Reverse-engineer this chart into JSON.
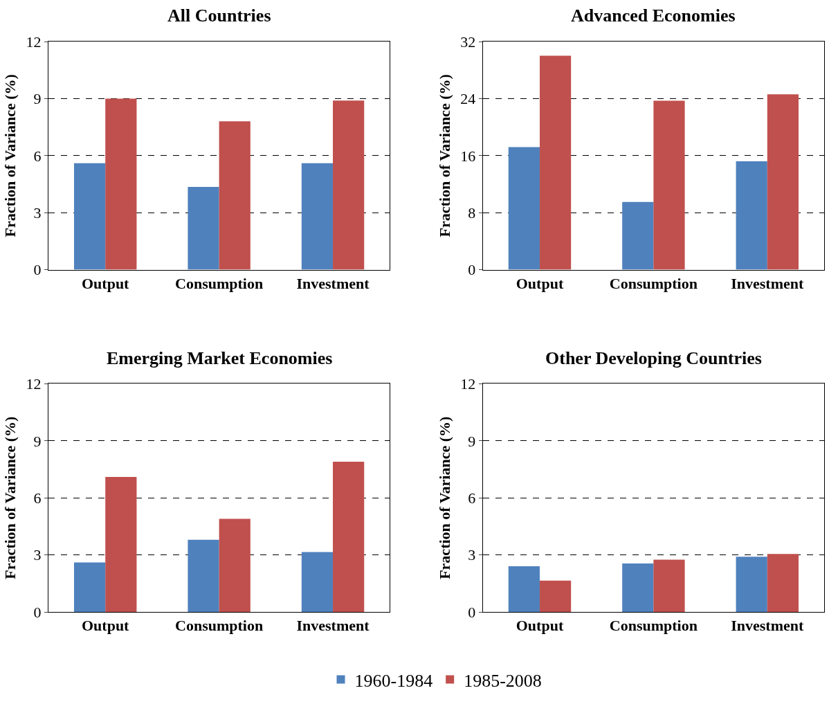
{
  "chart_data": [
    {
      "type": "bar",
      "title": "All Countries",
      "ylabel": "Fraction of Variance (%)",
      "categories": [
        "Output",
        "Consumption",
        "Investment"
      ],
      "series": [
        {
          "name": "1960-1984",
          "color": "#4f81bd",
          "values": [
            5.6,
            4.35,
            5.6
          ]
        },
        {
          "name": "1985-2008",
          "color": "#c0504d",
          "values": [
            9.0,
            7.8,
            8.9
          ]
        }
      ],
      "ylim": [
        0,
        12
      ],
      "yticks": [
        0,
        3,
        6,
        9,
        12
      ],
      "grid": "y",
      "legend": "bottom"
    },
    {
      "type": "bar",
      "title": "Advanced Economies",
      "ylabel": "Fraction of Variance (%)",
      "categories": [
        "Output",
        "Consumption",
        "Investment"
      ],
      "series": [
        {
          "name": "1960-1984",
          "color": "#4f81bd",
          "values": [
            17.2,
            9.5,
            15.2
          ]
        },
        {
          "name": "1985-2008",
          "color": "#c0504d",
          "values": [
            30.0,
            23.7,
            24.6
          ]
        }
      ],
      "ylim": [
        0,
        32
      ],
      "yticks": [
        0,
        8,
        16,
        24,
        32
      ],
      "grid": "y",
      "legend": "bottom"
    },
    {
      "type": "bar",
      "title": "Emerging Market Economies",
      "ylabel": "Fraction of Variance (%)",
      "categories": [
        "Output",
        "Consumption",
        "Investment"
      ],
      "series": [
        {
          "name": "1960-1984",
          "color": "#4f81bd",
          "values": [
            2.6,
            3.8,
            3.15
          ]
        },
        {
          "name": "1985-2008",
          "color": "#c0504d",
          "values": [
            7.1,
            4.9,
            7.9
          ]
        }
      ],
      "ylim": [
        0,
        12
      ],
      "yticks": [
        0,
        3,
        6,
        9,
        12
      ],
      "grid": "y",
      "legend": "bottom"
    },
    {
      "type": "bar",
      "title": "Other Developing Countries",
      "ylabel": "Fraction of Variance (%)",
      "categories": [
        "Output",
        "Consumption",
        "Investment"
      ],
      "series": [
        {
          "name": "1960-1984",
          "color": "#4f81bd",
          "values": [
            2.4,
            2.55,
            2.9
          ]
        },
        {
          "name": "1985-2008",
          "color": "#c0504d",
          "values": [
            1.65,
            2.75,
            3.05
          ]
        }
      ],
      "ylim": [
        0,
        12
      ],
      "yticks": [
        0,
        3,
        6,
        9,
        12
      ],
      "grid": "y",
      "legend": "bottom"
    }
  ]
}
